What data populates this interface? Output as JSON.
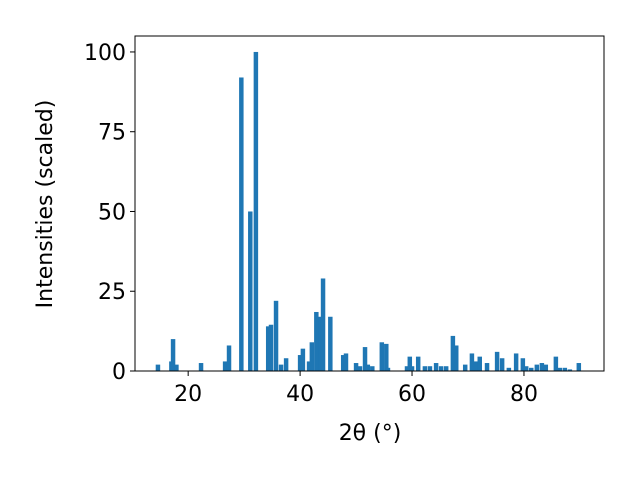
{
  "chart_data": {
    "type": "bar",
    "xlabel": "2θ (°)",
    "ylabel": "Intensities (scaled)",
    "color": "#1f77b4",
    "x": [
      14.6,
      17.0,
      17.3,
      17.9,
      22.3,
      26.6,
      27.3,
      29.5,
      31.1,
      32.1,
      34.3,
      34.8,
      35.7,
      36.6,
      37.5,
      40.0,
      40.5,
      41.6,
      42.1,
      42.9,
      43.6,
      44.1,
      45.4,
      47.7,
      48.2,
      50.0,
      50.7,
      51.6,
      52.1,
      52.9,
      54.6,
      55.4,
      55.7,
      59.1,
      59.6,
      60.0,
      61.1,
      62.3,
      63.2,
      64.3,
      65.2,
      66.1,
      67.3,
      67.9,
      69.5,
      70.7,
      71.4,
      72.1,
      73.4,
      75.2,
      76.1,
      77.3,
      78.6,
      79.8,
      80.4,
      81.3,
      82.3,
      83.2,
      83.9,
      85.7,
      86.4,
      87.3,
      88.2,
      89.8
    ],
    "values": [
      2,
      3,
      10,
      2,
      2.5,
      3,
      8,
      92,
      50,
      100,
      14,
      14.5,
      22,
      2,
      4,
      5,
      7,
      3,
      9,
      18.5,
      17,
      29,
      17,
      5,
      5.5,
      2.5,
      1.5,
      7.5,
      2,
      1.5,
      9,
      8.5,
      1,
      1.5,
      4.5,
      1.5,
      4.5,
      1.5,
      1.5,
      2.5,
      1.5,
      1.5,
      11,
      8,
      2,
      5.5,
      3,
      4.5,
      2.5,
      6,
      4,
      1,
      5.5,
      4,
      1.5,
      1,
      2,
      2.5,
      2,
      4.5,
      1,
      1,
      0.5,
      2.5
    ],
    "xlim": [
      10.5,
      94.3
    ],
    "ylim": [
      0,
      105
    ],
    "xticks": [
      20,
      40,
      60,
      80
    ],
    "yticks": [
      0,
      25,
      50,
      75,
      100
    ]
  }
}
